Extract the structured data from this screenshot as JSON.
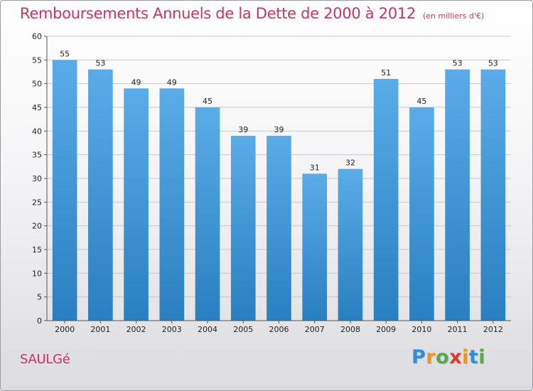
{
  "chart_data": {
    "type": "bar",
    "title": "Remboursements Annuels de la Dette de 2000 à 2012",
    "unit": "(en milliers d'€)",
    "categories": [
      "2000",
      "2001",
      "2002",
      "2003",
      "2004",
      "2005",
      "2006",
      "2007",
      "2008",
      "2009",
      "2010",
      "2011",
      "2012"
    ],
    "values": [
      55,
      53,
      49,
      49,
      45,
      39,
      39,
      31,
      32,
      51,
      45,
      53,
      53
    ],
    "ylim": [
      0,
      60
    ],
    "yticks": [
      0,
      5,
      10,
      15,
      20,
      25,
      30,
      35,
      40,
      45,
      50,
      55,
      60
    ],
    "grid": true,
    "bar_color_top": "#5aace8",
    "bar_color_bottom": "#2a7fc0"
  },
  "footer": {
    "commune": "SAULGé"
  },
  "logo": {
    "letters": [
      "P",
      "r",
      "o",
      "x",
      "i",
      "t",
      "i"
    ],
    "colors": [
      "#2f8fd8",
      "#e8961c",
      "#5aa84a",
      "#d83a3a",
      "#e8961c",
      "#2f8fd8",
      "#5aa84a"
    ]
  }
}
